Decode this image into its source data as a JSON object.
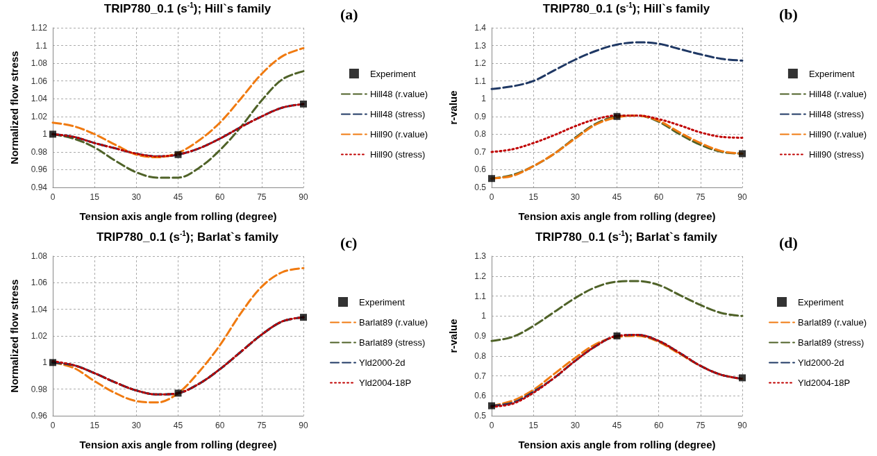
{
  "chart_data": [
    {
      "type": "line",
      "title": "TRIP780_0.1 (s$^{-1}$); Hill`s family",
      "annotations": [
        "(a)"
      ],
      "xlabel": "Tension axis angle from rolling (degree)",
      "ylabel": "Normalized flow stress",
      "xlim": [
        0,
        90
      ],
      "xticks": [
        0,
        15,
        30,
        45,
        60,
        75,
        90
      ],
      "ylim": [
        0.94,
        1.12
      ],
      "yticks": [
        0.94,
        0.96,
        0.98,
        1,
        1.02,
        1.04,
        1.06,
        1.08,
        1.1,
        1.12
      ],
      "grid": true,
      "legend": "right",
      "series": [
        {
          "name": "Experiment",
          "type": "scatter",
          "marker": "square",
          "color": "#000000",
          "x": [
            0,
            45,
            90
          ],
          "values": [
            1,
            0.977,
            1.034
          ]
        },
        {
          "name": "Hill48 (r.value)",
          "line_style": "dashed",
          "color": "#4f6228",
          "x": [
            0,
            7.5,
            15,
            22.5,
            30,
            37.5,
            45,
            52.5,
            60,
            67.5,
            75,
            82.5,
            90
          ],
          "values": [
            1,
            0.995,
            0.985,
            0.97,
            0.957,
            0.951,
            0.951,
            0.962,
            0.982,
            1.008,
            1.038,
            1.062,
            1.071
          ]
        },
        {
          "name": "Hill48 (stress)",
          "type": "line",
          "line_style": "dashed",
          "color": "#1f3864",
          "x": [
            0,
            7.5,
            15,
            22.5,
            30,
            37.5,
            45,
            52.5,
            60,
            67.5,
            75,
            82.5,
            90
          ],
          "values": [
            1,
            0.997,
            0.99,
            0.984,
            0.978,
            0.975,
            0.977,
            0.984,
            0.995,
            1.008,
            1.02,
            1.03,
            1.034
          ]
        },
        {
          "name": "Hill90 (r.value)",
          "type": "line",
          "line_style": "dashed",
          "color": "#f07a10",
          "x": [
            0,
            7.5,
            15,
            22.5,
            30,
            37.5,
            45,
            52.5,
            60,
            67.5,
            75,
            82.5,
            90
          ],
          "values": [
            1.013,
            1.009,
            1,
            0.988,
            0.977,
            0.974,
            0.979,
            0.993,
            1.013,
            1.04,
            1.068,
            1.088,
            1.097
          ]
        },
        {
          "name": "Hill90 (stress)",
          "type": "line",
          "line_style": "dotted",
          "color": "#c00000",
          "x": [
            0,
            7.5,
            15,
            22.5,
            30,
            37.5,
            45,
            52.5,
            60,
            67.5,
            75,
            82.5,
            90
          ],
          "values": [
            1,
            0.997,
            0.99,
            0.984,
            0.978,
            0.975,
            0.977,
            0.984,
            0.995,
            1.008,
            1.02,
            1.03,
            1.034
          ]
        }
      ]
    },
    {
      "type": "line",
      "title": "TRIP780_0.1 (s$^{-1}$); Hill`s family",
      "annotations": [
        "(b)"
      ],
      "xlabel": "Tension axis angle from rolling (degree)",
      "ylabel": "r-value",
      "xlim": [
        0,
        90
      ],
      "xticks": [
        0,
        15,
        30,
        45,
        60,
        75,
        90
      ],
      "ylim": [
        0.5,
        1.4
      ],
      "yticks": [
        0.5,
        0.6,
        0.7,
        0.8,
        0.9,
        1,
        1.1,
        1.2,
        1.3,
        1.4
      ],
      "grid": true,
      "legend": "right",
      "series": [
        {
          "name": "Experiment",
          "type": "scatter",
          "marker": "square",
          "color": "#000000",
          "x": [
            0,
            45,
            90
          ],
          "values": [
            0.55,
            0.9,
            0.69
          ]
        },
        {
          "name": "Hill48 (r.value)",
          "line_style": "dashed",
          "color": "#4f6228",
          "x": [
            0,
            7.5,
            15,
            22.5,
            30,
            37.5,
            45,
            52.5,
            60,
            67.5,
            75,
            82.5,
            90
          ],
          "values": [
            0.55,
            0.57,
            0.62,
            0.69,
            0.78,
            0.86,
            0.9,
            0.905,
            0.87,
            0.8,
            0.74,
            0.7,
            0.69
          ]
        },
        {
          "name": "Hill48 (stress)",
          "type": "line",
          "line_style": "dashed",
          "color": "#1f3864",
          "x": [
            0,
            7.5,
            15,
            22.5,
            30,
            37.5,
            45,
            52.5,
            60,
            67.5,
            75,
            82.5,
            90
          ],
          "values": [
            1.055,
            1.07,
            1.1,
            1.16,
            1.22,
            1.27,
            1.305,
            1.318,
            1.31,
            1.28,
            1.25,
            1.225,
            1.215
          ]
        },
        {
          "name": "Hill90 (r.value)",
          "type": "line",
          "line_style": "dashed",
          "color": "#f07a10",
          "x": [
            0,
            7.5,
            15,
            22.5,
            30,
            37.5,
            45,
            52.5,
            60,
            67.5,
            75,
            82.5,
            90
          ],
          "values": [
            0.55,
            0.565,
            0.62,
            0.69,
            0.775,
            0.855,
            0.895,
            0.905,
            0.875,
            0.81,
            0.75,
            0.705,
            0.69
          ]
        },
        {
          "name": "Hill90 (stress)",
          "type": "line",
          "line_style": "dotted",
          "color": "#c00000",
          "x": [
            0,
            7.5,
            15,
            22.5,
            30,
            37.5,
            45,
            52.5,
            60,
            67.5,
            75,
            82.5,
            90
          ],
          "values": [
            0.7,
            0.715,
            0.75,
            0.795,
            0.845,
            0.885,
            0.905,
            0.905,
            0.885,
            0.85,
            0.81,
            0.785,
            0.78
          ]
        }
      ]
    },
    {
      "type": "line",
      "title": "TRIP780_0.1 (s$^{-1}$); Barlat`s family",
      "annotations": [
        "(c)"
      ],
      "xlabel": "Tension axis angle from rolling (degree)",
      "ylabel": "Normalized flow stress",
      "xlim": [
        0,
        90
      ],
      "xticks": [
        0,
        15,
        30,
        45,
        60,
        75,
        90
      ],
      "ylim": [
        0.96,
        1.08
      ],
      "yticks": [
        0.96,
        0.98,
        1,
        1.02,
        1.04,
        1.06,
        1.08
      ],
      "grid": true,
      "legend": "right",
      "series": [
        {
          "name": "Experiment",
          "type": "scatter",
          "marker": "square",
          "color": "#000000",
          "x": [
            0,
            45,
            90
          ],
          "values": [
            1,
            0.977,
            1.034
          ]
        },
        {
          "name": "Barlat89 (r.value)",
          "line_style": "dashed",
          "color": "#f07a10",
          "x": [
            0,
            7.5,
            15,
            22.5,
            30,
            37.5,
            45,
            52.5,
            60,
            67.5,
            75,
            82.5,
            90
          ],
          "values": [
            1,
            0.996,
            0.986,
            0.977,
            0.971,
            0.97,
            0.977,
            0.993,
            1.013,
            1.037,
            1.057,
            1.068,
            1.071
          ]
        },
        {
          "name": "Barlat89 (stress)",
          "type": "line",
          "line_style": "dashed",
          "color": "#4f6228",
          "x": [
            0,
            7.5,
            15,
            22.5,
            30,
            37.5,
            45,
            52.5,
            60,
            67.5,
            75,
            82.5,
            90
          ],
          "values": [
            1,
            0.998,
            0.992,
            0.985,
            0.979,
            0.976,
            0.977,
            0.984,
            0.995,
            1.008,
            1.021,
            1.031,
            1.034
          ]
        },
        {
          "name": "Yld2000-2d",
          "type": "line",
          "line_style": "dashed",
          "color": "#1f3864",
          "x": [
            0,
            7.5,
            15,
            22.5,
            30,
            37.5,
            45,
            52.5,
            60,
            67.5,
            75,
            82.5,
            90
          ],
          "values": [
            1,
            0.998,
            0.992,
            0.985,
            0.979,
            0.976,
            0.977,
            0.984,
            0.995,
            1.008,
            1.021,
            1.031,
            1.034
          ]
        },
        {
          "name": "Yld2004-18P",
          "type": "line",
          "line_style": "dotted",
          "color": "#c00000",
          "x": [
            0,
            7.5,
            15,
            22.5,
            30,
            37.5,
            45,
            52.5,
            60,
            67.5,
            75,
            82.5,
            90
          ],
          "values": [
            1.001,
            0.998,
            0.992,
            0.985,
            0.979,
            0.976,
            0.977,
            0.984,
            0.995,
            1.008,
            1.021,
            1.031,
            1.034
          ]
        }
      ]
    },
    {
      "type": "line",
      "title": "TRIP780_0.1 (s$^{-1}$); Barlat`s family",
      "annotations": [
        "(d)"
      ],
      "xlabel": "Tension axis angle from rolling (degree)",
      "ylabel": "r-value",
      "xlim": [
        0,
        90
      ],
      "xticks": [
        0,
        15,
        30,
        45,
        60,
        75,
        90
      ],
      "ylim": [
        0.5,
        1.3
      ],
      "yticks": [
        0.5,
        0.6,
        0.7,
        0.8,
        0.9,
        1,
        1.1,
        1.2,
        1.3
      ],
      "grid": true,
      "legend": "right",
      "series": [
        {
          "name": "Experiment",
          "type": "scatter",
          "marker": "square",
          "color": "#000000",
          "x": [
            0,
            45,
            90
          ],
          "values": [
            0.55,
            0.9,
            0.69
          ]
        },
        {
          "name": "Barlat89 (r.value)",
          "line_style": "dashed",
          "color": "#f07a10",
          "x": [
            0,
            7.5,
            15,
            22.5,
            30,
            37.5,
            45,
            52.5,
            60,
            67.5,
            75,
            82.5,
            90
          ],
          "values": [
            0.55,
            0.575,
            0.63,
            0.71,
            0.79,
            0.86,
            0.895,
            0.9,
            0.87,
            0.81,
            0.75,
            0.705,
            0.685
          ]
        },
        {
          "name": "Barlat89 (stress)",
          "type": "line",
          "line_style": "dashed",
          "color": "#4f6228",
          "x": [
            0,
            7.5,
            15,
            22.5,
            30,
            37.5,
            45,
            52.5,
            60,
            67.5,
            75,
            82.5,
            90
          ],
          "values": [
            0.875,
            0.895,
            0.95,
            1.02,
            1.09,
            1.145,
            1.172,
            1.175,
            1.155,
            1.105,
            1.055,
            1.015,
            1
          ]
        },
        {
          "name": "Yld2000-2d",
          "type": "line",
          "line_style": "dashed",
          "color": "#1f3864",
          "x": [
            0,
            7.5,
            15,
            22.5,
            30,
            37.5,
            45,
            52.5,
            60,
            67.5,
            75,
            82.5,
            90
          ],
          "values": [
            0.55,
            0.565,
            0.62,
            0.69,
            0.775,
            0.85,
            0.9,
            0.905,
            0.875,
            0.815,
            0.75,
            0.705,
            0.685
          ]
        },
        {
          "name": "Yld2004-18P",
          "type": "line",
          "line_style": "dotted",
          "color": "#c00000",
          "x": [
            0,
            7.5,
            15,
            22.5,
            30,
            37.5,
            45,
            52.5,
            60,
            67.5,
            75,
            82.5,
            90
          ],
          "values": [
            0.545,
            0.56,
            0.615,
            0.69,
            0.775,
            0.85,
            0.9,
            0.905,
            0.875,
            0.815,
            0.75,
            0.705,
            0.685
          ]
        }
      ]
    }
  ]
}
